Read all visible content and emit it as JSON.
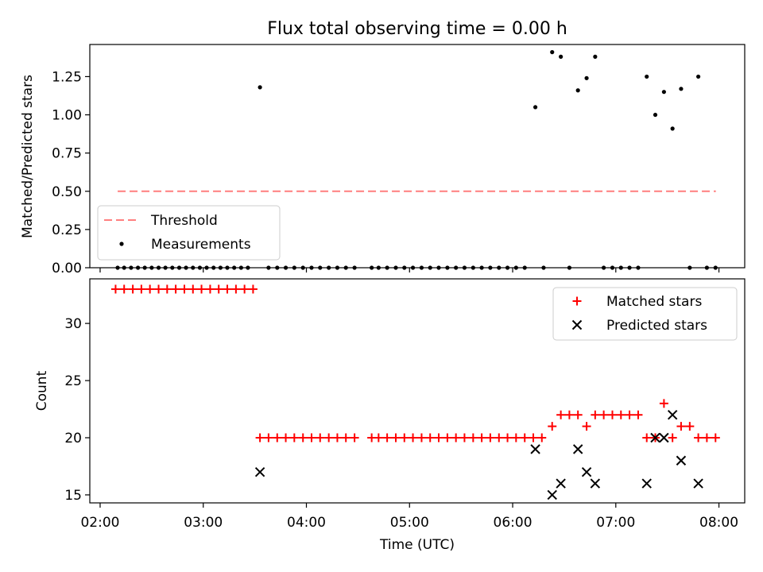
{
  "chart_data": [
    {
      "type": "scatter",
      "title": "Flux total observing time = 0.00 h",
      "xlabel": "",
      "ylabel": "Matched/Predicted stars",
      "xlim_hours": [
        1.9,
        8.25
      ],
      "ylim": [
        0.0,
        1.46
      ],
      "yticks": [
        0.0,
        0.25,
        0.5,
        0.75,
        1.0,
        1.25
      ],
      "ytick_labels": [
        "0.00",
        "0.25",
        "0.50",
        "0.75",
        "1.00",
        "1.25"
      ],
      "legend_position": "lower-left",
      "threshold": {
        "name": "Threshold",
        "value": 0.5,
        "x_range": [
          2.17,
          7.97
        ],
        "color": "#ff7f7f",
        "style": "dashed"
      },
      "measurements": {
        "name": "Measurements",
        "color": "#000000",
        "points": [
          [
            2.17,
            0.0
          ],
          [
            2.233,
            0.0
          ],
          [
            2.3,
            0.0
          ],
          [
            2.367,
            0.0
          ],
          [
            2.433,
            0.0
          ],
          [
            2.5,
            0.0
          ],
          [
            2.567,
            0.0
          ],
          [
            2.633,
            0.0
          ],
          [
            2.7,
            0.0
          ],
          [
            2.767,
            0.0
          ],
          [
            2.833,
            0.0
          ],
          [
            2.9,
            0.0
          ],
          [
            2.967,
            0.0
          ],
          [
            3.033,
            0.0
          ],
          [
            3.1,
            0.0
          ],
          [
            3.167,
            0.0
          ],
          [
            3.233,
            0.0
          ],
          [
            3.3,
            0.0
          ],
          [
            3.367,
            0.0
          ],
          [
            3.433,
            0.0
          ],
          [
            3.55,
            1.18
          ],
          [
            3.633,
            0.0
          ],
          [
            3.717,
            0.0
          ],
          [
            3.8,
            0.0
          ],
          [
            3.883,
            0.0
          ],
          [
            3.967,
            0.0
          ],
          [
            4.05,
            0.0
          ],
          [
            4.133,
            0.0
          ],
          [
            4.217,
            0.0
          ],
          [
            4.3,
            0.0
          ],
          [
            4.383,
            0.0
          ],
          [
            4.467,
            0.0
          ],
          [
            4.633,
            0.0
          ],
          [
            4.7,
            0.0
          ],
          [
            4.783,
            0.0
          ],
          [
            4.867,
            0.0
          ],
          [
            4.95,
            0.0
          ],
          [
            5.033,
            0.0
          ],
          [
            5.117,
            0.0
          ],
          [
            5.2,
            0.0
          ],
          [
            5.283,
            0.0
          ],
          [
            5.367,
            0.0
          ],
          [
            5.45,
            0.0
          ],
          [
            5.533,
            0.0
          ],
          [
            5.617,
            0.0
          ],
          [
            5.7,
            0.0
          ],
          [
            5.783,
            0.0
          ],
          [
            5.867,
            0.0
          ],
          [
            5.95,
            0.0
          ],
          [
            6.033,
            0.0
          ],
          [
            6.117,
            0.0
          ],
          [
            6.22,
            1.05
          ],
          [
            6.3,
            0.0
          ],
          [
            6.383,
            1.41
          ],
          [
            6.467,
            1.38
          ],
          [
            6.55,
            0.0
          ],
          [
            6.633,
            1.16
          ],
          [
            6.717,
            1.24
          ],
          [
            6.8,
            1.38
          ],
          [
            6.883,
            0.0
          ],
          [
            6.967,
            0.0
          ],
          [
            7.05,
            0.0
          ],
          [
            7.133,
            0.0
          ],
          [
            7.217,
            0.0
          ],
          [
            7.3,
            1.25
          ],
          [
            7.383,
            1.0
          ],
          [
            7.467,
            1.15
          ],
          [
            7.55,
            0.91
          ],
          [
            7.633,
            1.17
          ],
          [
            7.717,
            0.0
          ],
          [
            7.8,
            1.25
          ],
          [
            7.883,
            0.0
          ],
          [
            7.967,
            0.0
          ]
        ]
      }
    },
    {
      "type": "scatter",
      "title": "",
      "xlabel": "Time (UTC)",
      "ylabel": "Count",
      "xlim_hours": [
        1.9,
        8.25
      ],
      "ylim": [
        14.3,
        33.9
      ],
      "xticks_hours": [
        2,
        3,
        4,
        5,
        6,
        7,
        8
      ],
      "xtick_labels": [
        "02:00",
        "03:00",
        "04:00",
        "05:00",
        "06:00",
        "07:00",
        "08:00"
      ],
      "yticks": [
        15,
        20,
        25,
        30
      ],
      "ytick_labels": [
        "15",
        "20",
        "25",
        "30"
      ],
      "legend_position": "upper-right",
      "series": [
        {
          "name": "Matched stars",
          "marker": "+",
          "color": "#ff0000",
          "points": [
            [
              2.15,
              33
            ],
            [
              2.233,
              33
            ],
            [
              2.317,
              33
            ],
            [
              2.4,
              33
            ],
            [
              2.483,
              33
            ],
            [
              2.567,
              33
            ],
            [
              2.65,
              33
            ],
            [
              2.733,
              33
            ],
            [
              2.817,
              33
            ],
            [
              2.9,
              33
            ],
            [
              2.983,
              33
            ],
            [
              3.067,
              33
            ],
            [
              3.15,
              33
            ],
            [
              3.233,
              33
            ],
            [
              3.317,
              33
            ],
            [
              3.4,
              33
            ],
            [
              3.483,
              33
            ],
            [
              3.55,
              20
            ],
            [
              3.633,
              20
            ],
            [
              3.717,
              20
            ],
            [
              3.8,
              20
            ],
            [
              3.883,
              20
            ],
            [
              3.967,
              20
            ],
            [
              4.05,
              20
            ],
            [
              4.133,
              20
            ],
            [
              4.217,
              20
            ],
            [
              4.3,
              20
            ],
            [
              4.383,
              20
            ],
            [
              4.467,
              20
            ],
            [
              4.633,
              20
            ],
            [
              4.7,
              20
            ],
            [
              4.783,
              20
            ],
            [
              4.867,
              20
            ],
            [
              4.95,
              20
            ],
            [
              5.033,
              20
            ],
            [
              5.117,
              20
            ],
            [
              5.2,
              20
            ],
            [
              5.283,
              20
            ],
            [
              5.367,
              20
            ],
            [
              5.45,
              20
            ],
            [
              5.533,
              20
            ],
            [
              5.617,
              20
            ],
            [
              5.7,
              20
            ],
            [
              5.783,
              20
            ],
            [
              5.867,
              20
            ],
            [
              5.95,
              20
            ],
            [
              6.033,
              20
            ],
            [
              6.117,
              20
            ],
            [
              6.2,
              20
            ],
            [
              6.283,
              20
            ],
            [
              6.383,
              21
            ],
            [
              6.467,
              22
            ],
            [
              6.55,
              22
            ],
            [
              6.633,
              22
            ],
            [
              6.717,
              21
            ],
            [
              6.8,
              22
            ],
            [
              6.883,
              22
            ],
            [
              6.967,
              22
            ],
            [
              7.05,
              22
            ],
            [
              7.133,
              22
            ],
            [
              7.217,
              22
            ],
            [
              7.3,
              20
            ],
            [
              7.383,
              20
            ],
            [
              7.467,
              23
            ],
            [
              7.55,
              20
            ],
            [
              7.633,
              21
            ],
            [
              7.717,
              21
            ],
            [
              7.8,
              20
            ],
            [
              7.883,
              20
            ],
            [
              7.967,
              20
            ]
          ]
        },
        {
          "name": "Predicted stars",
          "marker": "x",
          "color": "#000000",
          "points": [
            [
              3.55,
              17
            ],
            [
              6.22,
              19
            ],
            [
              6.383,
              15
            ],
            [
              6.467,
              16
            ],
            [
              6.633,
              19
            ],
            [
              6.717,
              17
            ],
            [
              6.8,
              16
            ],
            [
              7.3,
              16
            ],
            [
              7.383,
              20
            ],
            [
              7.467,
              20
            ],
            [
              7.55,
              22
            ],
            [
              7.633,
              18
            ],
            [
              7.8,
              16
            ]
          ]
        }
      ]
    }
  ]
}
